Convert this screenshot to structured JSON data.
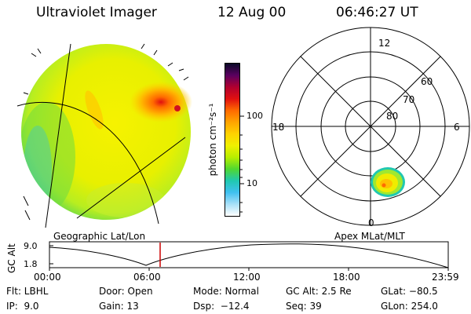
{
  "header": {
    "instrument": "Ultraviolet Imager",
    "date": "12 Aug 00",
    "time": "06:46:27 UT"
  },
  "colorbar": {
    "unit_label": "photon cm⁻²s⁻¹",
    "ticks": [
      "100",
      "10"
    ],
    "gradient": [
      "#0a0a28",
      "#5a0060",
      "#b00030",
      "#e01010",
      "#ff6a00",
      "#ffa400",
      "#ffd200",
      "#f0f000",
      "#b8ee00",
      "#50d830",
      "#20c8b0",
      "#40c0f0",
      "#a8e0f8",
      "#ffffff"
    ]
  },
  "left_panel": {
    "caption": "Geographic Lat/Lon"
  },
  "right_panel": {
    "caption": "Apex MLat/MLT",
    "mlt_labels": {
      "top": "12",
      "left": "18",
      "right": "6",
      "bottom": "0"
    },
    "lat_labels": [
      "60",
      "70",
      "80"
    ]
  },
  "timeline": {
    "axis_label": "GC Alt",
    "y_ticks": [
      "9.0",
      "1.8"
    ],
    "x_ticks": [
      "00:00",
      "06:00",
      "12:00",
      "18:00",
      "23:59"
    ],
    "marker_color": "#cc0000"
  },
  "info": {
    "row1": {
      "flt": "Flt: LBHL",
      "door": "Door: Open",
      "mode": "Mode: Normal",
      "gcalt": "GC Alt: 2.5 Re",
      "glat": "GLat: −80.5"
    },
    "row2": {
      "ip": "IP:  9.0",
      "gain": "Gain: 13",
      "dsp": "Dsp:  −12.4",
      "seq": "Seq: 39",
      "glon": "GLon: 254.0"
    }
  }
}
